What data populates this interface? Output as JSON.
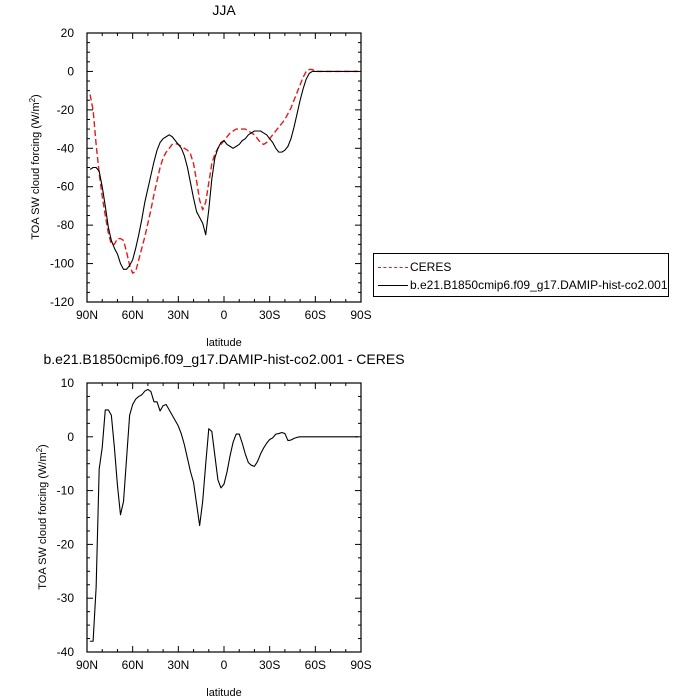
{
  "chart_data": [
    {
      "type": "line",
      "title": "JJA",
      "xlabel": "latitude",
      "ylabel": "TOA SW cloud forcing (W/m",
      "ylabel_sup": "2",
      "ylabel_close": ")",
      "xlim": [
        90,
        -90
      ],
      "ylim": [
        -120,
        20
      ],
      "xticks": [
        90,
        60,
        30,
        0,
        -30,
        -60,
        -90
      ],
      "xticklabels": [
        "90N",
        "60N",
        "30N",
        "0",
        "30S",
        "60S",
        "90S"
      ],
      "yticks": [
        20,
        0,
        -20,
        -40,
        -60,
        -80,
        -100,
        -120
      ],
      "yticklabels": [
        "20",
        "0",
        "-20",
        "-40",
        "-60",
        "-80",
        "-100",
        "-120"
      ],
      "legend_position": "right",
      "series": [
        {
          "name": "CERES",
          "style": "dashed",
          "color": "#e41a1c",
          "x": [
            88,
            86,
            84,
            82,
            80,
            78,
            76,
            74,
            72,
            70,
            68,
            66,
            64,
            62,
            60,
            58,
            56,
            54,
            52,
            50,
            48,
            46,
            44,
            42,
            40,
            38,
            36,
            34,
            32,
            30,
            28,
            26,
            24,
            22,
            20,
            18,
            16,
            14,
            12,
            10,
            8,
            6,
            4,
            2,
            0,
            -2,
            -4,
            -6,
            -8,
            -10,
            -12,
            -14,
            -16,
            -18,
            -20,
            -22,
            -24,
            -26,
            -28,
            -30,
            -32,
            -34,
            -36,
            -38,
            -40,
            -42,
            -44,
            -46,
            -48,
            -50,
            -52,
            -54,
            -56,
            -58,
            -60,
            -62,
            -64,
            -66,
            -68,
            -70,
            -72,
            -74,
            -76,
            -78,
            -80,
            -82,
            -84,
            -86,
            -88
          ],
          "y": [
            -12,
            -20,
            -38,
            -53,
            -65,
            -75,
            -84,
            -90,
            -90,
            -87,
            -87,
            -88,
            -94,
            -101,
            -105,
            -104,
            -98,
            -92,
            -86,
            -79,
            -72,
            -64,
            -57,
            -50,
            -45,
            -42,
            -40,
            -38,
            -37.5,
            -38,
            -39,
            -40,
            -41,
            -43,
            -48,
            -57,
            -67,
            -72,
            -68,
            -58,
            -48,
            -43,
            -40,
            -38,
            -36,
            -34,
            -32,
            -31,
            -30,
            -30,
            -30,
            -30,
            -31,
            -32,
            -33,
            -35,
            -37,
            -38,
            -37,
            -35,
            -33,
            -31,
            -29,
            -27,
            -25,
            -22,
            -19,
            -15,
            -11,
            -7,
            -3,
            0,
            1,
            1,
            0,
            0,
            0,
            0,
            0,
            0,
            0,
            0,
            0,
            0,
            0,
            0,
            0,
            0,
            0
          ]
        },
        {
          "name": "b.e21.B1850cmip6.f09_g17.DAMIP-hist-co2.001",
          "style": "solid",
          "color": "#000000",
          "x": [
            88,
            86,
            84,
            82,
            80,
            78,
            76,
            74,
            72,
            70,
            68,
            66,
            64,
            62,
            60,
            58,
            56,
            54,
            52,
            50,
            48,
            46,
            44,
            42,
            40,
            38,
            36,
            34,
            32,
            30,
            28,
            26,
            24,
            22,
            20,
            18,
            16,
            14,
            12,
            10,
            8,
            6,
            4,
            2,
            0,
            -2,
            -4,
            -6,
            -8,
            -10,
            -12,
            -14,
            -16,
            -18,
            -20,
            -22,
            -24,
            -26,
            -28,
            -30,
            -32,
            -34,
            -36,
            -38,
            -40,
            -42,
            -44,
            -46,
            -48,
            -50,
            -52,
            -54,
            -56,
            -58,
            -60,
            -62,
            -64,
            -66,
            -68,
            -70,
            -72,
            -74,
            -76,
            -78,
            -80,
            -82,
            -84,
            -86,
            -88
          ],
          "y": [
            -51,
            -50,
            -50,
            -52,
            -60,
            -70,
            -81,
            -88,
            -92,
            -95,
            -100,
            -103,
            -103,
            -101,
            -98,
            -92,
            -85,
            -77,
            -68,
            -61,
            -54,
            -47,
            -41,
            -37,
            -35,
            -34,
            -33,
            -34,
            -36,
            -38,
            -40,
            -44,
            -50,
            -58,
            -66,
            -73,
            -76,
            -79,
            -85,
            -72,
            -56,
            -45,
            -40,
            -37,
            -36,
            -38,
            -39,
            -40,
            -39,
            -38,
            -36,
            -35,
            -33,
            -32,
            -31,
            -31,
            -31,
            -32,
            -33,
            -35,
            -37,
            -40,
            -42,
            -42,
            -41,
            -39,
            -35,
            -29,
            -22,
            -15,
            -9,
            -4,
            -1,
            0,
            0,
            0,
            0,
            0,
            0,
            0,
            0,
            0,
            0,
            0,
            0,
            0,
            0,
            0,
            0
          ]
        }
      ]
    },
    {
      "type": "line",
      "title": "b.e21.B1850cmip6.f09_g17.DAMIP-hist-co2.001 - CERES",
      "xlabel": "latitude",
      "ylabel": "TOA SW cloud forcing (W/m",
      "ylabel_sup": "2",
      "ylabel_close": ")",
      "xlim": [
        90,
        -90
      ],
      "ylim": [
        -40,
        10
      ],
      "xticks": [
        90,
        60,
        30,
        0,
        -30,
        -60,
        -90
      ],
      "xticklabels": [
        "90N",
        "60N",
        "30N",
        "0",
        "30S",
        "60S",
        "90S"
      ],
      "yticks": [
        10,
        0,
        -10,
        -20,
        -30,
        -40
      ],
      "yticklabels": [
        "10",
        "0",
        "-10",
        "-20",
        "-30",
        "-40"
      ],
      "series": [
        {
          "style": "solid",
          "color": "#000000",
          "x": [
            88,
            86,
            84,
            82,
            80,
            78,
            76,
            74,
            72,
            70,
            68,
            66,
            64,
            62,
            60,
            58,
            56,
            54,
            52,
            50,
            48,
            46,
            44,
            42,
            40,
            38,
            36,
            34,
            32,
            30,
            28,
            26,
            24,
            22,
            20,
            18,
            16,
            14,
            12,
            10,
            8,
            6,
            4,
            2,
            0,
            -2,
            -4,
            -6,
            -8,
            -10,
            -12,
            -14,
            -16,
            -18,
            -20,
            -22,
            -24,
            -26,
            -28,
            -30,
            -32,
            -34,
            -36,
            -38,
            -40,
            -42,
            -44,
            -46,
            -48,
            -50,
            -52,
            -54,
            -56,
            -58,
            -60,
            -62,
            -64,
            -66,
            -68,
            -70,
            -72,
            -74,
            -76,
            -78,
            -80,
            -82,
            -84,
            -86,
            -88
          ],
          "y": [
            -38,
            -38,
            -28,
            -6,
            -2,
            5,
            5,
            4,
            -2,
            -9,
            -14.5,
            -12,
            -4,
            4,
            6,
            7,
            7.5,
            7.8,
            8.5,
            8.8,
            8.4,
            6.5,
            6.5,
            4.8,
            5.8,
            6,
            5,
            4,
            3,
            2,
            0.5,
            -1.5,
            -4,
            -6.5,
            -8.5,
            -12.5,
            -16.5,
            -12,
            -5,
            1.5,
            1,
            -3.5,
            -8,
            -9.5,
            -8.8,
            -6.5,
            -3.5,
            -1,
            0.5,
            0.5,
            -1.2,
            -3.2,
            -4.8,
            -5.3,
            -5.5,
            -4.6,
            -3.2,
            -2.1,
            -1.2,
            -0.5,
            -0.2,
            0.5,
            0.6,
            0.8,
            0.6,
            -0.7,
            -0.6,
            -0.3,
            -0.1,
            0,
            0,
            0,
            0,
            0,
            0,
            0,
            0,
            0,
            0,
            0,
            0,
            0,
            0,
            0,
            0,
            0,
            0,
            0,
            0
          ]
        }
      ]
    }
  ]
}
